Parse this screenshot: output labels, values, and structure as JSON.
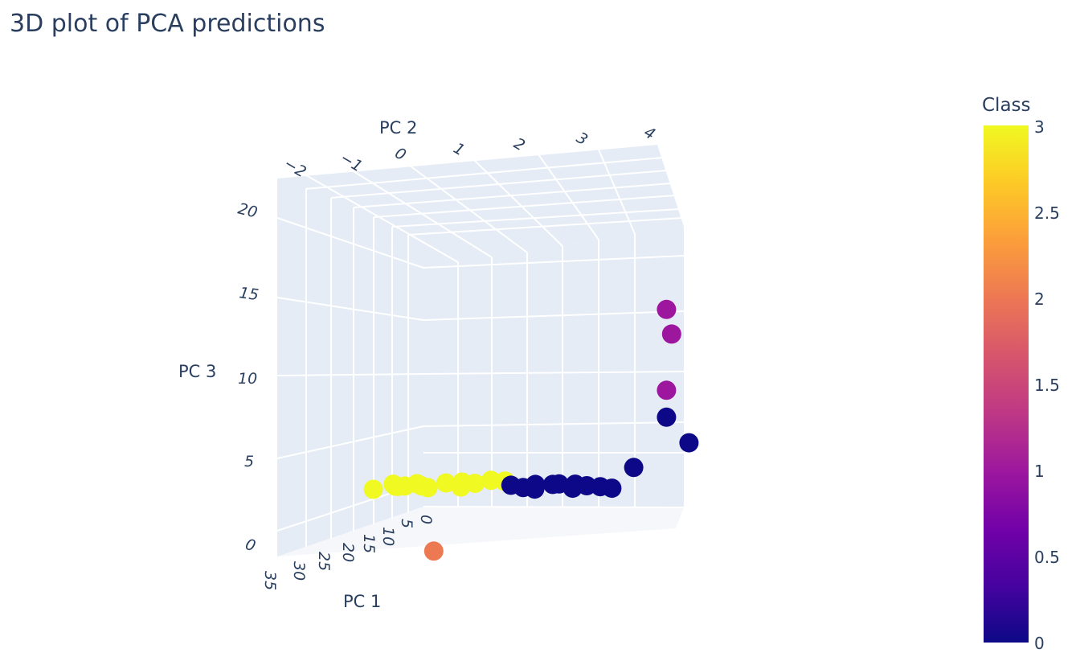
{
  "chart_data": {
    "type": "scatter",
    "title": "3D plot of PCA predictions",
    "axes": {
      "x": {
        "label": "PC 1",
        "ticks": [
          "0",
          "5",
          "10",
          "15",
          "20",
          "25",
          "30",
          "35"
        ]
      },
      "y": {
        "label": "PC 2",
        "ticks": [
          "−2",
          "−1",
          "0",
          "1",
          "2",
          "3",
          "4"
        ]
      },
      "z": {
        "label": "PC 3",
        "ticks": [
          "0",
          "5",
          "10",
          "15",
          "20"
        ]
      }
    },
    "colorbar": {
      "title": "Class",
      "ticks": [
        "0",
        "0.5",
        "1",
        "1.5",
        "2",
        "2.5",
        "3"
      ],
      "range": [
        0,
        3
      ],
      "colorscale": [
        "#0d0887",
        "#46039f",
        "#7201a8",
        "#9c179e",
        "#bd3786",
        "#d8576b",
        "#ed7953",
        "#fb9f3a",
        "#fdca26",
        "#f0f921"
      ]
    },
    "points": [
      {
        "x": 1.0,
        "y": -0.8,
        "z": 2.2,
        "class": 3
      },
      {
        "x": 0.5,
        "y": -0.6,
        "z": 2.4,
        "class": 3
      },
      {
        "x": 0.8,
        "y": -0.4,
        "z": 2.3,
        "class": 3
      },
      {
        "x": 1.2,
        "y": -0.3,
        "z": 2.5,
        "class": 3
      },
      {
        "x": 0.6,
        "y": -0.1,
        "z": 2.4,
        "class": 3
      },
      {
        "x": 1.5,
        "y": 0.0,
        "z": 2.6,
        "class": 3
      },
      {
        "x": 0.9,
        "y": 0.1,
        "z": 2.3,
        "class": 3
      },
      {
        "x": 1.1,
        "y": 0.3,
        "z": 2.2,
        "class": 3
      },
      {
        "x": 0.7,
        "y": 0.5,
        "z": 2.4,
        "class": 3
      },
      {
        "x": 0.4,
        "y": 0.7,
        "z": 2.3,
        "class": 3
      },
      {
        "x": 1.0,
        "y": 0.9,
        "z": 2.1,
        "class": 3
      },
      {
        "x": 0.8,
        "y": 1.1,
        "z": 2.3,
        "class": 3
      },
      {
        "x": 0.5,
        "y": 1.3,
        "z": 2.4,
        "class": 3
      },
      {
        "x": 0.3,
        "y": 1.5,
        "z": 2.2,
        "class": 3
      },
      {
        "x": 0.6,
        "y": 1.6,
        "z": 2.3,
        "class": 3
      },
      {
        "x": 0.8,
        "y": 1.8,
        "z": 2.0,
        "class": 0
      },
      {
        "x": 0.7,
        "y": 2.0,
        "z": 1.7,
        "class": 0
      },
      {
        "x": 0.6,
        "y": 2.2,
        "z": 1.9,
        "class": 0
      },
      {
        "x": 0.9,
        "y": 2.3,
        "z": 1.6,
        "class": 0
      },
      {
        "x": 0.5,
        "y": 2.5,
        "z": 1.8,
        "class": 0
      },
      {
        "x": 0.7,
        "y": 2.7,
        "z": 1.9,
        "class": 0
      },
      {
        "x": 0.4,
        "y": 2.9,
        "z": 1.7,
        "class": 0
      },
      {
        "x": 0.8,
        "y": 3.0,
        "z": 1.5,
        "class": 0
      },
      {
        "x": 0.6,
        "y": 3.2,
        "z": 1.6,
        "class": 0
      },
      {
        "x": 0.7,
        "y": 3.5,
        "z": 1.5,
        "class": 0
      },
      {
        "x": 0.9,
        "y": 3.8,
        "z": 1.4,
        "class": 0
      },
      {
        "x": 0.3,
        "y": 4.0,
        "z": 3.0,
        "class": 0
      },
      {
        "x": 0.2,
        "y": 4.6,
        "z": 7.5,
        "class": 0
      },
      {
        "x": 0.1,
        "y": 5.0,
        "z": 5.0,
        "class": 0
      },
      {
        "x": 0.2,
        "y": 4.6,
        "z": 10.0,
        "class": 1
      },
      {
        "x": 0.2,
        "y": 4.7,
        "z": 15.2,
        "class": 1
      },
      {
        "x": 0.2,
        "y": 4.6,
        "z": 17.5,
        "class": 1
      },
      {
        "x": 4.0,
        "y": 1.5,
        "z": -2.5,
        "class": 2
      }
    ]
  }
}
